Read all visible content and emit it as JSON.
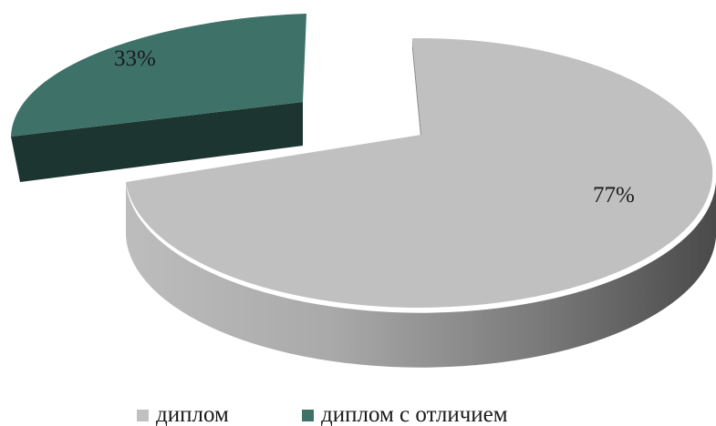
{
  "chart_data": {
    "type": "pie",
    "three_d": true,
    "legend_position": "bottom",
    "slices": [
      {
        "name": "диплом",
        "label": "77%",
        "value": 77,
        "color": "#c0c0c0",
        "exploded": false
      },
      {
        "name": "диплом с отличием",
        "label": "33%",
        "value": 33,
        "color": "#3e7268",
        "exploded": true
      }
    ],
    "legend": [
      {
        "label": "диплом",
        "color": "#c0c0c0"
      },
      {
        "label": "диплом с отличием",
        "color": "#3e7268"
      }
    ]
  }
}
